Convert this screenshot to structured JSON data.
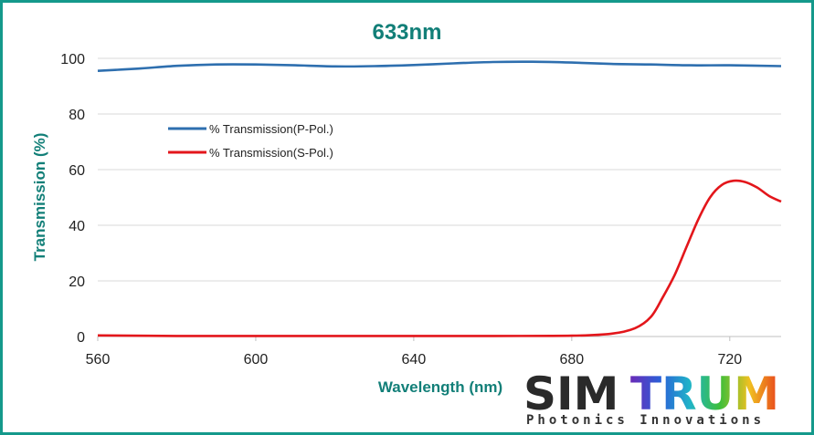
{
  "chart_data": {
    "type": "line",
    "title": "633nm",
    "xlabel": "Wavelength (nm)",
    "ylabel": "Transmission (%)",
    "xlim": [
      560,
      733
    ],
    "ylim": [
      0,
      100
    ],
    "xticks": [
      560,
      600,
      640,
      680,
      720
    ],
    "yticks": [
      0,
      20,
      40,
      60,
      80,
      100
    ],
    "grid": "horizontal",
    "legend_position": "upper-left",
    "series": [
      {
        "name": "% Transmission(P-Pol.)",
        "color": "#2e6faf",
        "points": [
          [
            560,
            95.5
          ],
          [
            570,
            96.3
          ],
          [
            580,
            97.3
          ],
          [
            590,
            97.8
          ],
          [
            600,
            97.8
          ],
          [
            610,
            97.5
          ],
          [
            620,
            97.1
          ],
          [
            630,
            97.2
          ],
          [
            640,
            97.6
          ],
          [
            650,
            98.2
          ],
          [
            660,
            98.7
          ],
          [
            670,
            98.8
          ],
          [
            680,
            98.5
          ],
          [
            690,
            98.0
          ],
          [
            700,
            97.8
          ],
          [
            710,
            97.5
          ],
          [
            720,
            97.5
          ],
          [
            733,
            97.2
          ]
        ]
      },
      {
        "name": "% Transmission(S-Pol.)",
        "color": "#e3161b",
        "points": [
          [
            560,
            0.4
          ],
          [
            580,
            0.2
          ],
          [
            600,
            0.2
          ],
          [
            620,
            0.2
          ],
          [
            640,
            0.2
          ],
          [
            660,
            0.2
          ],
          [
            680,
            0.3
          ],
          [
            690,
            1.0
          ],
          [
            696,
            3.0
          ],
          [
            700,
            7.0
          ],
          [
            703,
            14.0
          ],
          [
            706,
            22.0
          ],
          [
            709,
            32.0
          ],
          [
            712,
            42.0
          ],
          [
            715,
            50.0
          ],
          [
            718,
            54.5
          ],
          [
            721,
            56.0
          ],
          [
            724,
            55.5
          ],
          [
            727,
            53.5
          ],
          [
            730,
            50.5
          ],
          [
            733,
            48.5
          ]
        ]
      }
    ]
  },
  "logo": {
    "brand": "SIMTRUM",
    "tagline": "Photonics Innovations"
  }
}
